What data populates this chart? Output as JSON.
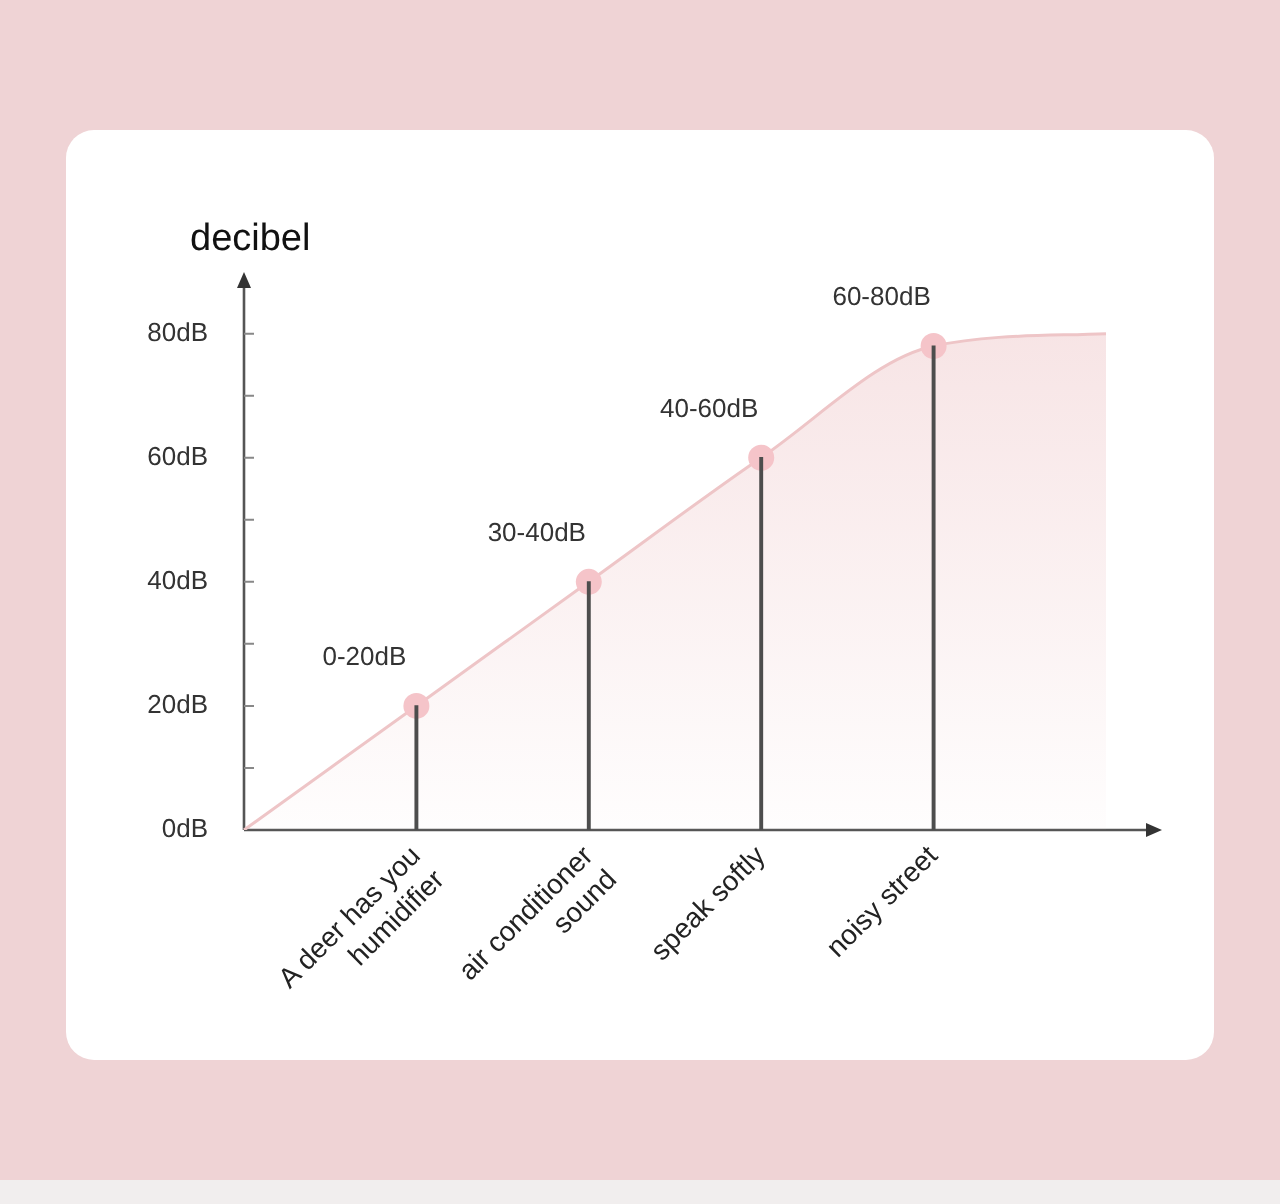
{
  "chart_data": {
    "type": "area",
    "ylabel": "decibel",
    "categories": [
      null,
      "A deer has you humidifier",
      "air conditioner sound",
      "speak softly",
      "noisy street",
      null
    ],
    "series": [
      {
        "color": "#eec5c7",
        "values": [
          0,
          20,
          40,
          60,
          78,
          80
        ]
      },
      {
        "type": "scatter",
        "color": "#f5c4c9",
        "values": [
          null,
          20,
          40,
          60,
          78,
          null
        ],
        "value_labels": [
          null,
          "0-20dB",
          "30-40dB",
          "40-60dB",
          "60-80dB",
          null
        ]
      },
      {
        "type": "bar",
        "color": "#4d4d4d",
        "values": [
          null,
          20,
          40,
          60,
          78,
          null
        ]
      }
    ],
    "ylim": [
      0,
      88
    ],
    "yticks": [
      {
        "value": 0,
        "label": "0dB"
      },
      {
        "value": 10,
        "label": null
      },
      {
        "value": 20,
        "label": "20dB"
      },
      {
        "value": 30,
        "label": null
      },
      {
        "value": 40,
        "label": "40dB"
      },
      {
        "value": 50,
        "label": null
      },
      {
        "value": 60,
        "label": "60dB"
      },
      {
        "value": 70,
        "label": null
      },
      {
        "value": 80,
        "label": "80dB"
      }
    ]
  }
}
